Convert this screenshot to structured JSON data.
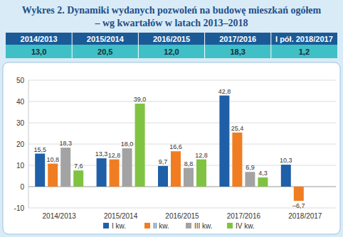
{
  "title": "Wykres 2. Dynamiki wydanych pozwoleń na budowę mieszkań ogółem",
  "subtitle": "– wg kwartałów w latach 2013–2018",
  "table": {
    "header": [
      "2014/2013",
      "2015/2014",
      "2016/2015",
      "2017/2016",
      "I pół. 2018/2017"
    ],
    "rows": [
      [
        "13,0",
        "20,5",
        "12,0",
        "18,3",
        "1,2"
      ]
    ]
  },
  "chart_data": {
    "type": "bar",
    "categories": [
      "2014/2013",
      "2015/2014",
      "2016/2015",
      "2017/2016",
      "2018/2017"
    ],
    "series": [
      {
        "name": "I kw.",
        "color": "#1f5fa8",
        "values": [
          15.5,
          13.3,
          9.7,
          42.8,
          10.3
        ],
        "value_labels": [
          "15,5",
          "13,3",
          "9,7",
          "42,8",
          "10,3"
        ]
      },
      {
        "name": "II kw.",
        "color": "#f07d22",
        "values": [
          10.8,
          12.8,
          16.6,
          25.4,
          -6.7
        ],
        "value_labels": [
          "10,8",
          "12,8",
          "16,6",
          "25,4",
          "–6,7"
        ]
      },
      {
        "name": "III kw.",
        "color": "#a3a3a3",
        "values": [
          18.3,
          18.0,
          8.8,
          6.9,
          null
        ],
        "value_labels": [
          "18,3",
          "18,0",
          "8,8",
          "6,9",
          null
        ]
      },
      {
        "name": "IV kw.",
        "color": "#80c342",
        "values": [
          7.6,
          39.0,
          12.8,
          4.3,
          null
        ],
        "value_labels": [
          "7,6",
          "39,0",
          "12,8",
          "4,3",
          null
        ]
      }
    ],
    "ylim": [
      -10,
      50
    ],
    "yticks": [
      -10,
      0,
      10,
      20,
      30,
      40,
      50
    ],
    "grid": true,
    "data_labels": true,
    "legend": "bottom"
  }
}
